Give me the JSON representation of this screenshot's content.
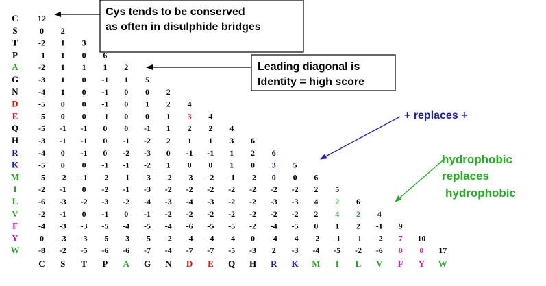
{
  "colors": {
    "black": "#000000",
    "green": "#22a722",
    "red": "#e81010",
    "blue": "#1010c8",
    "magenta": "#e010b0",
    "arrow_blue": "#2020c0",
    "arrow_green": "#20b020"
  },
  "amino_acids": [
    {
      "code": "C",
      "color": "black"
    },
    {
      "code": "S",
      "color": "black"
    },
    {
      "code": "T",
      "color": "black"
    },
    {
      "code": "P",
      "color": "black"
    },
    {
      "code": "A",
      "color": "green"
    },
    {
      "code": "G",
      "color": "black"
    },
    {
      "code": "N",
      "color": "black"
    },
    {
      "code": "D",
      "color": "red"
    },
    {
      "code": "E",
      "color": "red"
    },
    {
      "code": "Q",
      "color": "black"
    },
    {
      "code": "H",
      "color": "black"
    },
    {
      "code": "R",
      "color": "blue"
    },
    {
      "code": "K",
      "color": "blue"
    },
    {
      "code": "M",
      "color": "green"
    },
    {
      "code": "I",
      "color": "green"
    },
    {
      "code": "L",
      "color": "green"
    },
    {
      "code": "V",
      "color": "green"
    },
    {
      "code": "F",
      "color": "magenta"
    },
    {
      "code": "Y",
      "color": "magenta"
    },
    {
      "code": "W",
      "color": "green"
    }
  ],
  "matrix": [
    [
      "12"
    ],
    [
      "0",
      "2"
    ],
    [
      "-2",
      "1",
      "3"
    ],
    [
      "-1",
      "1",
      "0",
      "6"
    ],
    [
      "-2",
      "1",
      "1",
      "1",
      "2"
    ],
    [
      "-3",
      "1",
      "0",
      "-1",
      "1",
      "5"
    ],
    [
      "-4",
      "1",
      "0",
      "-1",
      "0",
      "0",
      "2"
    ],
    [
      "-5",
      "0",
      "0",
      "-1",
      "0",
      "1",
      "2",
      "4"
    ],
    [
      "-5",
      "0",
      "0",
      "-1",
      "0",
      "0",
      "1",
      "3",
      "4"
    ],
    [
      "-5",
      "-1",
      "-1",
      "0",
      "0",
      "-1",
      "1",
      "2",
      "2",
      "4"
    ],
    [
      "-3",
      "-1",
      "-1",
      "0",
      "-1",
      "-2",
      "2",
      "1",
      "1",
      "3",
      "6"
    ],
    [
      "-4",
      "0",
      "-1",
      "0",
      "-2",
      "-3",
      "0",
      "-1",
      "-1",
      "1",
      "2",
      "6"
    ],
    [
      "-5",
      "0",
      "0",
      "-1",
      "-1",
      "-2",
      "1",
      "0",
      "0",
      "1",
      "0",
      "3",
      "5"
    ],
    [
      "-5",
      "-2",
      "-1",
      "-2",
      "-1",
      "-3",
      "-2",
      "-3",
      "-2",
      "-1",
      "-2",
      "0",
      "0",
      "6"
    ],
    [
      "-2",
      "-1",
      "0",
      "-2",
      "-1",
      "-3",
      "-2",
      "-2",
      "-2",
      "-2",
      "-2",
      "-2",
      "-2",
      "2",
      "5"
    ],
    [
      "-6",
      "-3",
      "-2",
      "-3",
      "-2",
      "-4",
      "-3",
      "-4",
      "-3",
      "-2",
      "-2",
      "-3",
      "-3",
      "4",
      "2",
      "6"
    ],
    [
      "-2",
      "-1",
      "0",
      "-1",
      "0",
      "-1",
      "-2",
      "-2",
      "-2",
      "-2",
      "-2",
      "-2",
      "-2",
      "2",
      "4",
      "2",
      "4"
    ],
    [
      "-4",
      "-3",
      "-3",
      "-5",
      "-4",
      "-5",
      "-4",
      "-6",
      "-5",
      "-5",
      "-2",
      "-4",
      "-5",
      "0",
      "1",
      "2",
      "-1",
      "9"
    ],
    [
      "0",
      "-3",
      "-3",
      "-5",
      "-3",
      "-5",
      "-2",
      "-4",
      "-4",
      "-4",
      "0",
      "-4",
      "-4",
      "-2",
      "-1",
      "-1",
      "-2",
      "7",
      "10"
    ],
    [
      "-8",
      "-2",
      "-5",
      "-6",
      "-6",
      "-7",
      "-4",
      "-7",
      "-7",
      "-5",
      "-3",
      "2",
      "-3",
      "-4",
      "-5",
      "-2",
      "-6",
      "0",
      "0",
      "17"
    ]
  ],
  "highlights": [
    {
      "row": 8,
      "col": 7,
      "color": "red"
    },
    {
      "row": 12,
      "col": 11,
      "color": "blue"
    },
    {
      "row": 15,
      "col": 14,
      "color": "green"
    },
    {
      "row": 16,
      "col": 14,
      "color": "green"
    },
    {
      "row": 16,
      "col": 15,
      "color": "green"
    },
    {
      "row": 18,
      "col": 17,
      "color": "magenta"
    },
    {
      "row": 19,
      "col": 17,
      "color": "magenta"
    },
    {
      "row": 19,
      "col": 18,
      "color": "magenta"
    }
  ],
  "annotations": {
    "cys_line1": "Cys tends to be conserved",
    "cys_line2": "as often in disulphide bridges",
    "diag_line1": "Leading diagonal is",
    "diag_line2": "Identity = high score",
    "plus_replaces": "+ replaces +",
    "hydro_line1": "hydrophobic",
    "hydro_line2": "replaces",
    "hydro_line3": "hydrophobic"
  }
}
